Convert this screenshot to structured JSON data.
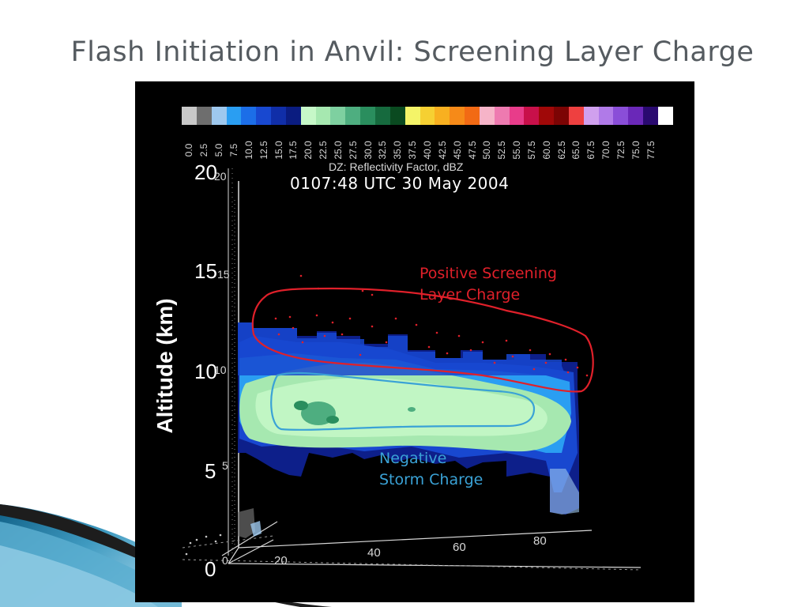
{
  "slide": {
    "title": "Flash Initiation in Anvil: Screening Layer Charge"
  },
  "figure": {
    "timestamp": "0107:48 UTC 30 May 2004",
    "colorbar": {
      "label": "DZ: Reflectivity Factor, dBZ",
      "ticks": [
        "0.0",
        "2.5",
        "5.0",
        "7.5",
        "10.0",
        "12.5",
        "15.0",
        "17.5",
        "20.0",
        "22.5",
        "25.0",
        "27.5",
        "30.0",
        "32.5",
        "35.0",
        "37.5",
        "40.0",
        "42.5",
        "45.0",
        "47.5",
        "50.0",
        "52.5",
        "55.0",
        "57.5",
        "60.0",
        "62.5",
        "65.0",
        "67.5",
        "70.0",
        "72.5",
        "75.0",
        "77.5"
      ],
      "colors": [
        "#c8c8c8",
        "#6e6e6e",
        "#9ec8ee",
        "#2a9ef2",
        "#1c6ee8",
        "#1848d0",
        "#102ea8",
        "#0a1c80",
        "#c6f8c8",
        "#a6e8b0",
        "#7ed0a0",
        "#4eae80",
        "#2a8e5e",
        "#166a3e",
        "#0a4a20",
        "#f4f468",
        "#f6d032",
        "#f8b020",
        "#f68a18",
        "#f26a14",
        "#f6b4c8",
        "#ee7ab0",
        "#e83c8a",
        "#c8104a",
        "#a00808",
        "#7c0404",
        "#ee4040",
        "#d0a0ee",
        "#b07ae8",
        "#8a4ed8",
        "#6a28b8",
        "#2a0a70",
        "#ffffff"
      ]
    },
    "y_axis": {
      "label": "Altitude (km)",
      "ticks": [
        "0",
        "5",
        "10",
        "15",
        "20"
      ],
      "inner_ticks": [
        "0",
        "5",
        "10",
        "15",
        "20"
      ]
    },
    "x_axis": {
      "ticks": [
        "20",
        "40",
        "60",
        "80"
      ]
    },
    "annotations": {
      "positive": [
        "Positive Screening",
        "Layer Charge"
      ],
      "negative": [
        "Negative",
        "Storm Charge"
      ],
      "positive_color": "#e0202a",
      "negative_color": "#3aa2d6"
    }
  }
}
